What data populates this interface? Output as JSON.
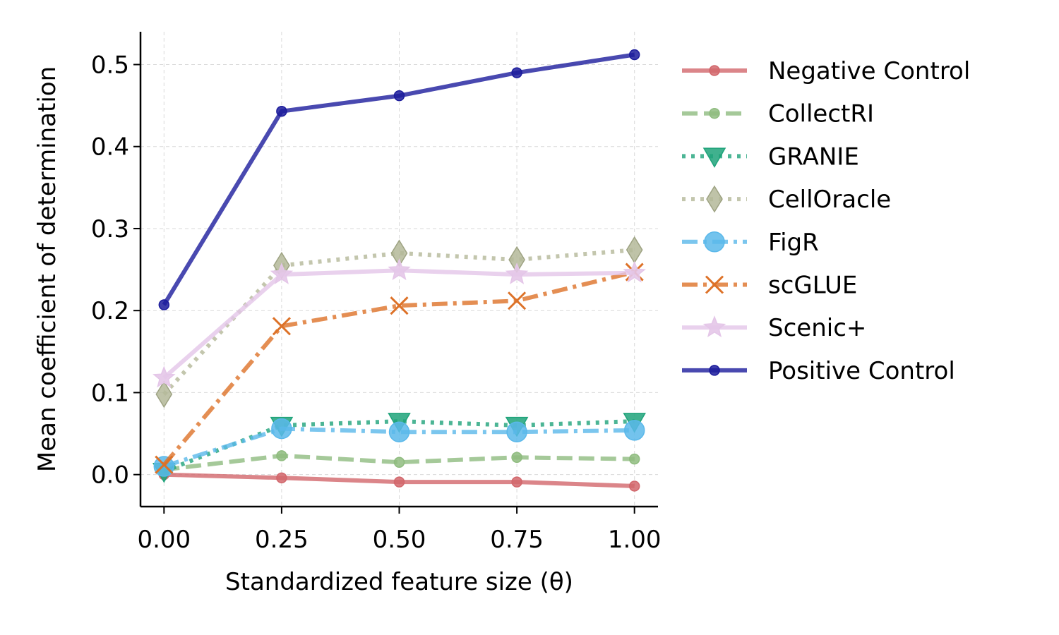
{
  "chart_data": {
    "type": "line",
    "x": [
      0.0,
      0.25,
      0.5,
      0.75,
      1.0
    ],
    "x_tick_labels": [
      "0.00",
      "0.25",
      "0.50",
      "0.75",
      "1.00"
    ],
    "y_ticks": [
      0.0,
      0.1,
      0.2,
      0.3,
      0.4,
      0.5
    ],
    "y_tick_labels": [
      "0.0",
      "0.1",
      "0.2",
      "0.3",
      "0.4",
      "0.5"
    ],
    "xlim": [
      -0.05,
      1.05
    ],
    "ylim": [
      -0.039,
      0.54
    ],
    "xlabel": "Standardized feature size (θ)",
    "ylabel": "Mean coefficient of determination",
    "grid": true,
    "legend_position": "right, outside plot",
    "series": [
      {
        "name": "Negative Control",
        "values": [
          0.0,
          -0.004,
          -0.009,
          -0.009,
          -0.014
        ],
        "color": "#d2676c",
        "dash": "solid",
        "marker": "circle"
      },
      {
        "name": "CollectRI",
        "values": [
          0.006,
          0.023,
          0.015,
          0.021,
          0.019
        ],
        "color": "#8fbc7f",
        "dash": "dashed",
        "marker": "circle"
      },
      {
        "name": "GRANIE",
        "values": [
          0.004,
          0.06,
          0.065,
          0.06,
          0.065
        ],
        "color": "#1fa37a",
        "dash": "dotted",
        "marker": "triangle-down"
      },
      {
        "name": "CellOracle",
        "values": [
          0.098,
          0.255,
          0.27,
          0.262,
          0.274
        ],
        "color": "#b4b899",
        "dash": "dotted",
        "marker": "diamond"
      },
      {
        "name": "FigR",
        "values": [
          0.01,
          0.056,
          0.052,
          0.052,
          0.054
        ],
        "color": "#5ab8ea",
        "dash": "dashdot",
        "marker": "circle"
      },
      {
        "name": "scGLUE",
        "values": [
          0.012,
          0.181,
          0.206,
          0.212,
          0.247
        ],
        "color": "#dd7228",
        "dash": "dashdot",
        "marker": "x"
      },
      {
        "name": "Scenic+",
        "values": [
          0.118,
          0.244,
          0.249,
          0.244,
          0.246
        ],
        "color": "#e4c6e8",
        "dash": "solid",
        "marker": "star"
      },
      {
        "name": "Positive Control",
        "values": [
          0.207,
          0.443,
          0.462,
          0.49,
          0.512
        ],
        "color": "#1c1c9c",
        "dash": "solid",
        "marker": "circle"
      }
    ]
  }
}
